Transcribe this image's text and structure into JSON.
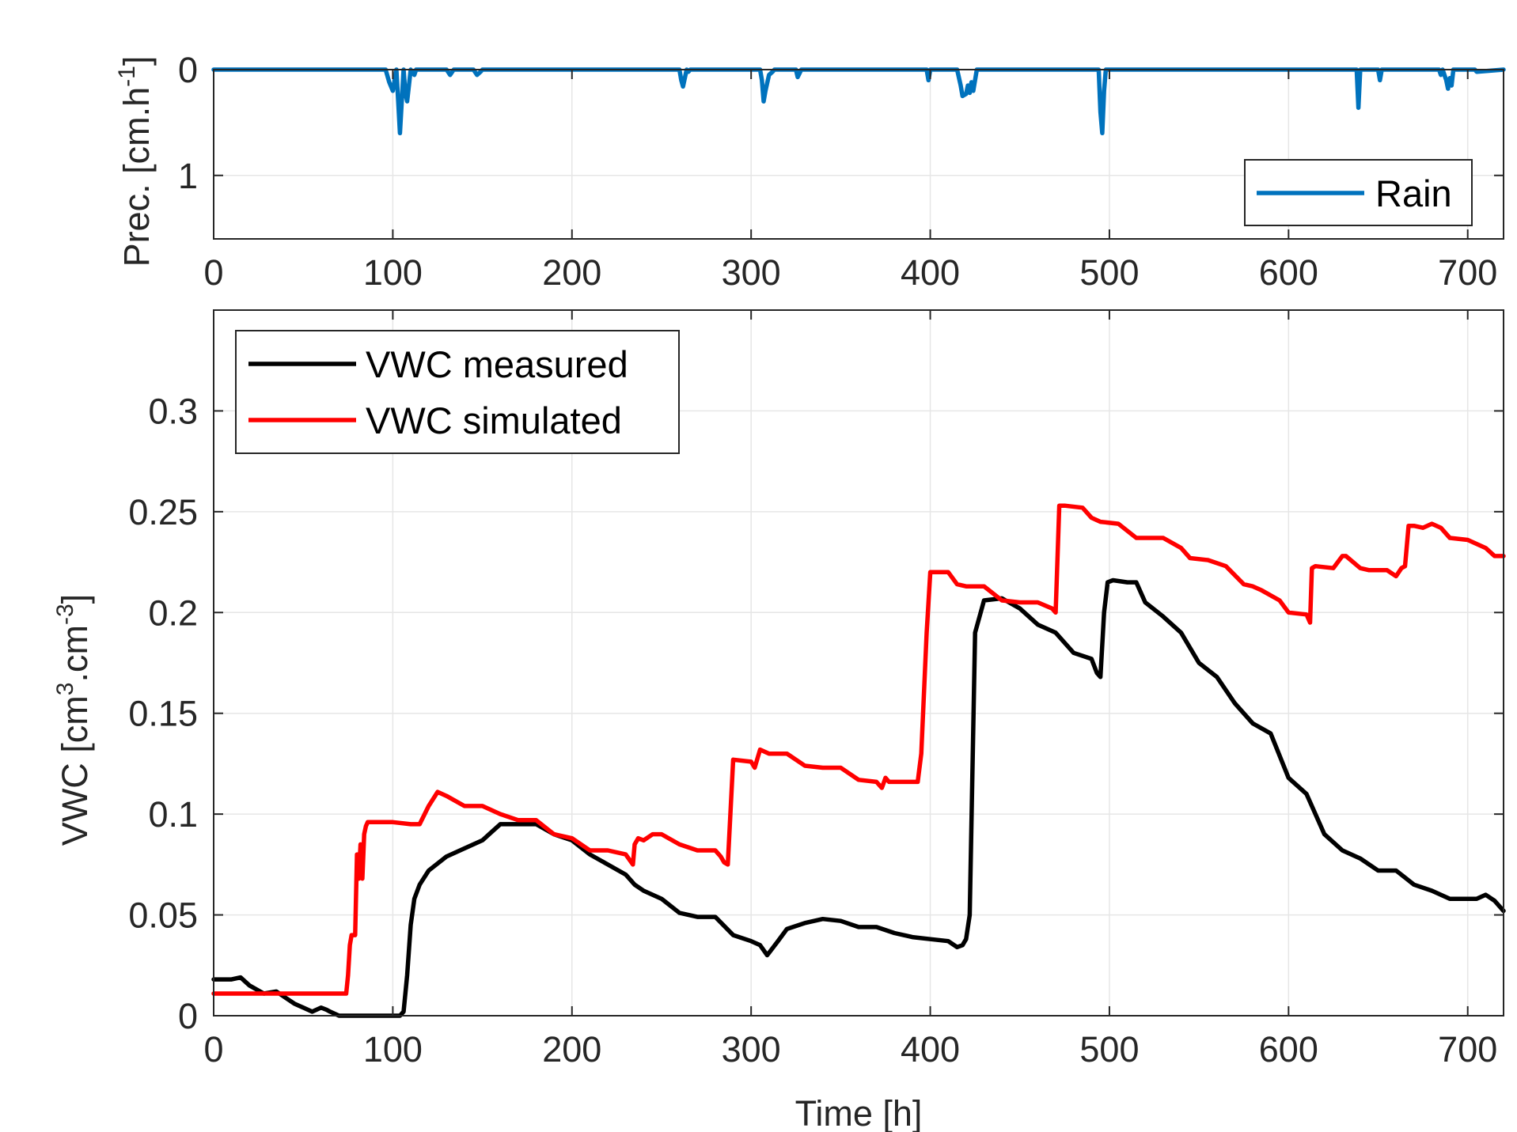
{
  "chart_data": [
    {
      "type": "line",
      "ylabel": "Prec. [cm.h",
      "ylabel_sup": "-1",
      "ylabel_end": "]",
      "xlim": [
        0,
        720
      ],
      "ylim": [
        0,
        1.6
      ],
      "y_reversed": true,
      "grid": true,
      "legend_position": "bottom-right",
      "xticks": [
        "0",
        "100",
        "200",
        "300",
        "400",
        "500",
        "600",
        "700"
      ],
      "yticks": [
        "0",
        "1"
      ],
      "colors": {
        "Rain": "#0072BD"
      },
      "series": [
        {
          "name": "Rain",
          "x": [
            0,
            96,
            98,
            100,
            102,
            103,
            104,
            106,
            107,
            108,
            110,
            112,
            113,
            114,
            116,
            120,
            130,
            132,
            134,
            145,
            147,
            149,
            150,
            260,
            261,
            262,
            264,
            265,
            266,
            268,
            305,
            306,
            307,
            308,
            310,
            312,
            313,
            325,
            326,
            328,
            398,
            399,
            400,
            415,
            417,
            418,
            420,
            421,
            422,
            423,
            424,
            426,
            494,
            495,
            496,
            497,
            498,
            638,
            639,
            640,
            650,
            651,
            652,
            684,
            685,
            686,
            688,
            689,
            690,
            691,
            692,
            704,
            705,
            720
          ],
          "y": [
            0,
            0,
            0.12,
            0.2,
            0,
            0.3,
            0.6,
            0,
            0.22,
            0.3,
            0,
            0.05,
            0,
            0,
            0,
            0,
            0,
            0.05,
            0,
            0,
            0.05,
            0.02,
            0,
            0,
            0.1,
            0.16,
            0,
            0.02,
            0,
            0,
            0,
            0.1,
            0.3,
            0.2,
            0.05,
            0.02,
            0,
            0,
            0.07,
            0,
            0,
            0.1,
            0,
            0,
            0.15,
            0.25,
            0.23,
            0.15,
            0.22,
            0.12,
            0.2,
            0,
            0,
            0.4,
            0.6,
            0.2,
            0,
            0,
            0.36,
            0,
            0,
            0.1,
            0,
            0,
            0.05,
            0,
            0.1,
            0.18,
            0.08,
            0.15,
            0,
            0,
            0.02,
            0
          ]
        }
      ]
    },
    {
      "type": "line",
      "xlabel": "Time [h]",
      "ylabel": "VWC [cm",
      "ylabel_sup1": "3",
      "ylabel_mid": ".cm",
      "ylabel_sup2": "-3",
      "ylabel_end": "]",
      "xlim": [
        0,
        720
      ],
      "ylim": [
        0,
        0.35
      ],
      "grid": true,
      "legend_position": "top-left",
      "xticks": [
        "0",
        "100",
        "200",
        "300",
        "400",
        "500",
        "600",
        "700"
      ],
      "yticks": [
        "0",
        "0.05",
        "0.1",
        "0.15",
        "0.2",
        "0.25",
        "0.3"
      ],
      "colors": {
        "VWC measured": "#000000",
        "VWC simulated": "#FF0000"
      },
      "series": [
        {
          "name": "VWC measured",
          "x": [
            0,
            10,
            15,
            20,
            28,
            35,
            40,
            45,
            50,
            55,
            60,
            63,
            65,
            70,
            75,
            80,
            90,
            100,
            104,
            106,
            108,
            110,
            112,
            115,
            120,
            130,
            140,
            150,
            155,
            160,
            170,
            180,
            190,
            200,
            210,
            220,
            230,
            235,
            240,
            250,
            260,
            270,
            280,
            290,
            300,
            305,
            309,
            315,
            320,
            330,
            340,
            350,
            360,
            370,
            380,
            390,
            400,
            410,
            415,
            418,
            420,
            422,
            425,
            430,
            440,
            450,
            460,
            470,
            480,
            490,
            493,
            495,
            497,
            499,
            502,
            510,
            515,
            520,
            530,
            540,
            550,
            560,
            570,
            580,
            590,
            600,
            610,
            620,
            630,
            640,
            650,
            660,
            670,
            680,
            690,
            700,
            705,
            710,
            715,
            720
          ],
          "y": [
            0.018,
            0.018,
            0.019,
            0.015,
            0.011,
            0.012,
            0.009,
            0.006,
            0.004,
            0.002,
            0.004,
            0.003,
            0.002,
            0,
            0,
            0,
            0,
            0,
            0,
            0.002,
            0.02,
            0.045,
            0.058,
            0.065,
            0.072,
            0.079,
            0.083,
            0.087,
            0.091,
            0.095,
            0.095,
            0.095,
            0.09,
            0.087,
            0.08,
            0.075,
            0.07,
            0.065,
            0.062,
            0.058,
            0.051,
            0.049,
            0.049,
            0.04,
            0.037,
            0.035,
            0.03,
            0.037,
            0.043,
            0.046,
            0.048,
            0.047,
            0.044,
            0.044,
            0.041,
            0.039,
            0.038,
            0.037,
            0.034,
            0.035,
            0.038,
            0.05,
            0.19,
            0.206,
            0.207,
            0.202,
            0.194,
            0.19,
            0.18,
            0.177,
            0.17,
            0.168,
            0.2,
            0.215,
            0.216,
            0.215,
            0.215,
            0.205,
            0.198,
            0.19,
            0.175,
            0.168,
            0.155,
            0.145,
            0.14,
            0.118,
            0.11,
            0.09,
            0.082,
            0.078,
            0.072,
            0.072,
            0.065,
            0.062,
            0.058,
            0.058,
            0.058,
            0.06,
            0.057,
            0.052
          ]
        },
        {
          "name": "VWC simulated",
          "x": [
            0,
            10,
            50,
            74,
            75,
            76,
            77,
            79,
            80,
            81,
            82,
            83,
            84,
            85,
            86,
            90,
            100,
            110,
            115,
            120,
            125,
            130,
            140,
            150,
            160,
            170,
            180,
            190,
            200,
            210,
            220,
            230,
            234,
            235,
            237,
            240,
            245,
            250,
            260,
            270,
            280,
            283,
            285,
            287,
            290,
            300,
            302,
            305,
            310,
            320,
            330,
            340,
            350,
            360,
            370,
            373,
            375,
            377,
            385,
            393,
            395,
            398,
            400,
            405,
            410,
            415,
            420,
            430,
            440,
            450,
            460,
            468,
            470,
            472,
            475,
            485,
            490,
            495,
            505,
            515,
            525,
            530,
            540,
            545,
            555,
            565,
            575,
            580,
            585,
            595,
            600,
            610,
            612,
            613,
            615,
            625,
            630,
            632,
            640,
            645,
            655,
            660,
            663,
            665,
            667,
            670,
            675,
            680,
            685,
            690,
            700,
            710,
            715,
            720
          ],
          "y": [
            0.011,
            0.011,
            0.011,
            0.011,
            0.02,
            0.035,
            0.04,
            0.04,
            0.08,
            0.068,
            0.085,
            0.068,
            0.09,
            0.094,
            0.096,
            0.096,
            0.096,
            0.095,
            0.095,
            0.104,
            0.111,
            0.109,
            0.104,
            0.104,
            0.1,
            0.097,
            0.097,
            0.09,
            0.088,
            0.082,
            0.082,
            0.08,
            0.075,
            0.085,
            0.088,
            0.087,
            0.09,
            0.09,
            0.085,
            0.082,
            0.082,
            0.079,
            0.076,
            0.075,
            0.127,
            0.126,
            0.123,
            0.132,
            0.13,
            0.13,
            0.124,
            0.123,
            0.123,
            0.117,
            0.116,
            0.113,
            0.118,
            0.116,
            0.116,
            0.116,
            0.13,
            0.19,
            0.22,
            0.22,
            0.22,
            0.214,
            0.213,
            0.213,
            0.206,
            0.205,
            0.205,
            0.202,
            0.2,
            0.253,
            0.253,
            0.252,
            0.247,
            0.245,
            0.244,
            0.237,
            0.237,
            0.237,
            0.232,
            0.227,
            0.226,
            0.223,
            0.214,
            0.213,
            0.211,
            0.206,
            0.2,
            0.199,
            0.195,
            0.222,
            0.223,
            0.222,
            0.228,
            0.228,
            0.222,
            0.221,
            0.221,
            0.218,
            0.222,
            0.223,
            0.243,
            0.243,
            0.242,
            0.244,
            0.242,
            0.237,
            0.236,
            0.232,
            0.228,
            0.228
          ]
        }
      ]
    }
  ]
}
